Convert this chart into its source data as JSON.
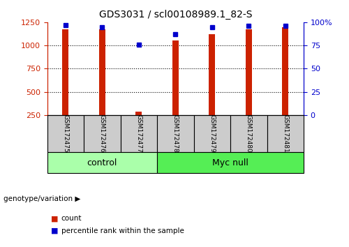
{
  "title": "GDS3031 / scl00108989.1_82-S",
  "samples": [
    "GSM172475",
    "GSM172476",
    "GSM172477",
    "GSM172478",
    "GSM172479",
    "GSM172480",
    "GSM172481"
  ],
  "counts": [
    1175,
    1175,
    285,
    1050,
    1120,
    1175,
    1195
  ],
  "percentiles": [
    97,
    95,
    76,
    87,
    95,
    96,
    96
  ],
  "groups": [
    {
      "label": "control",
      "start": 0,
      "end": 3,
      "color": "#aaffaa"
    },
    {
      "label": "Myc null",
      "start": 3,
      "end": 7,
      "color": "#55ee55"
    }
  ],
  "bar_color": "#cc2200",
  "dot_color": "#0000cc",
  "ylim_left": [
    250,
    1250
  ],
  "ylim_right": [
    0,
    100
  ],
  "yticks_left": [
    250,
    500,
    750,
    1000,
    1250
  ],
  "yticks_right": [
    0,
    25,
    50,
    75,
    100
  ],
  "yticklabels_right": [
    "0",
    "25",
    "50",
    "75",
    "100%"
  ],
  "grid_values": [
    500,
    750,
    1000
  ],
  "background_color": "#ffffff",
  "tick_area_color": "#cccccc",
  "genotype_label": "genotype/variation",
  "legend_count": "count",
  "legend_percentile": "percentile rank within the sample"
}
